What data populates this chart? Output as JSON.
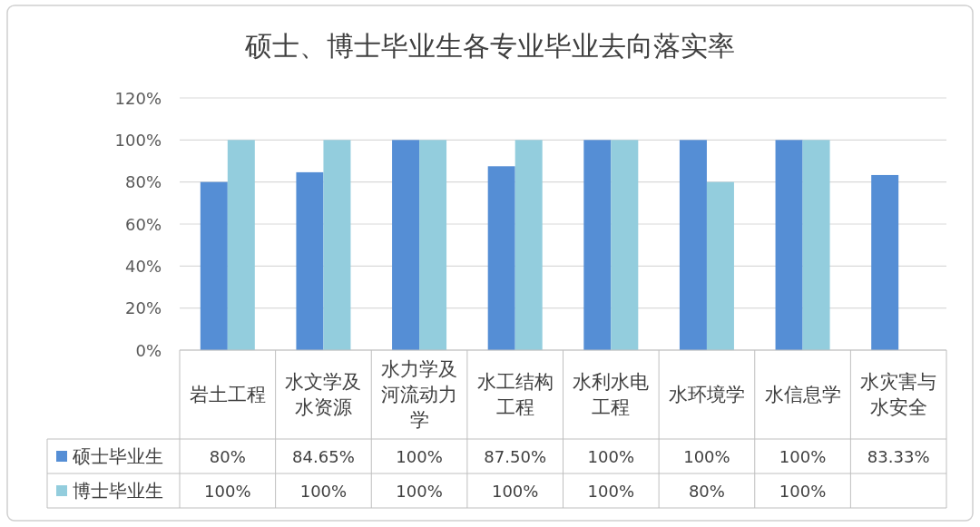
{
  "chart_data": {
    "type": "bar",
    "title": "硕士、博士毕业生各专业毕业去向落实率",
    "categories": [
      "岩土工程",
      "水文学及水资源",
      "水力学及河流动力学",
      "水工结构工程",
      "水利水电工程",
      "水环境学",
      "水信息学",
      "水灾害与水安全"
    ],
    "series": [
      {
        "name": "硕士毕业生",
        "color": "#558ed5",
        "values": [
          80,
          84.65,
          100,
          87.5,
          100,
          100,
          100,
          83.33
        ],
        "value_labels": [
          "80%",
          "84.65%",
          "100%",
          "87.50%",
          "100%",
          "100%",
          "100%",
          "83.33%"
        ]
      },
      {
        "name": "博士毕业生",
        "color": "#93cddd",
        "values": [
          100,
          100,
          100,
          100,
          100,
          80,
          100,
          null
        ],
        "value_labels": [
          "100%",
          "100%",
          "100%",
          "100%",
          "100%",
          "80%",
          "100%",
          null
        ]
      }
    ],
    "ylim": [
      0,
      120
    ],
    "yticks": [
      {
        "value": 0,
        "label": "0%"
      },
      {
        "value": 20,
        "label": "20%"
      },
      {
        "value": 40,
        "label": "40%"
      },
      {
        "value": 60,
        "label": "60%"
      },
      {
        "value": 80,
        "label": "80%"
      },
      {
        "value": 100,
        "label": "100%"
      },
      {
        "value": 120,
        "label": "120%"
      }
    ],
    "grid": "y",
    "legend": "bottom"
  }
}
